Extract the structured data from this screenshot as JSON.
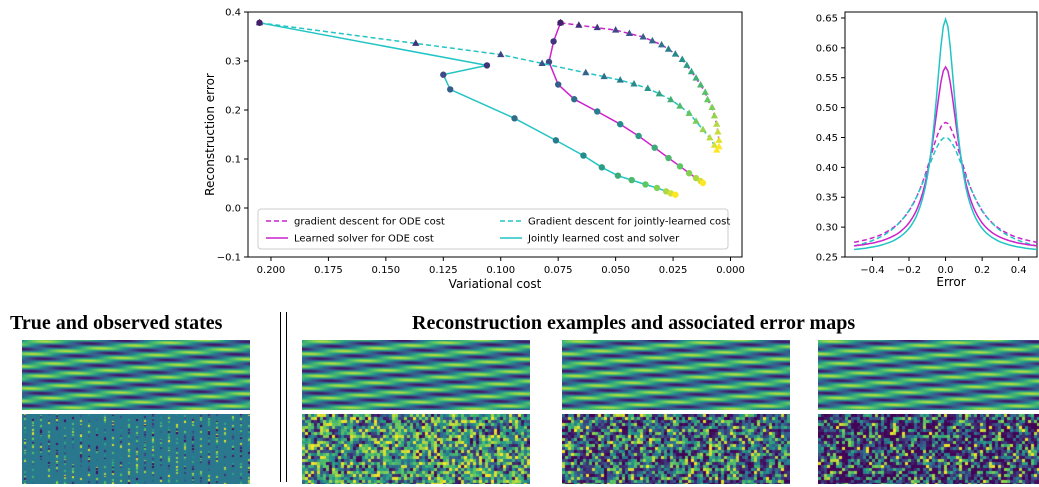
{
  "chart_data": [
    {
      "type": "line",
      "xlabel": "Variational cost",
      "ylabel": "Reconstruction error",
      "xlim": [
        0.21,
        -0.005
      ],
      "ylim": [
        -0.1,
        0.4
      ],
      "x_inverted": true,
      "xticks": [
        "0.200",
        "0.175",
        "0.150",
        "0.125",
        "0.100",
        "0.075",
        "0.050",
        "0.025",
        "0.000"
      ],
      "yticks": [
        "-0.1",
        "0.0",
        "0.1",
        "0.2",
        "0.3",
        "0.4"
      ],
      "legend_position": "bottom",
      "series": [
        {
          "name": "gradient descent for ODE cost",
          "color": "#cc22cc",
          "dash": "dashed",
          "marker": "triangle",
          "points": [
            [
              0.074,
              0.378
            ],
            [
              0.066,
              0.373
            ],
            [
              0.058,
              0.368
            ],
            [
              0.05,
              0.363
            ],
            [
              0.044,
              0.356
            ],
            [
              0.038,
              0.349
            ],
            [
              0.034,
              0.341
            ],
            [
              0.03,
              0.333
            ],
            [
              0.027,
              0.324
            ],
            [
              0.024,
              0.314
            ],
            [
              0.021,
              0.303
            ],
            [
              0.019,
              0.291
            ],
            [
              0.017,
              0.278
            ],
            [
              0.015,
              0.265
            ],
            [
              0.013,
              0.251
            ],
            [
              0.011,
              0.236
            ],
            [
              0.01,
              0.221
            ],
            [
              0.008,
              0.205
            ],
            [
              0.007,
              0.188
            ],
            [
              0.006,
              0.171
            ],
            [
              0.0055,
              0.155
            ],
            [
              0.005,
              0.138
            ],
            [
              0.005,
              0.125
            ]
          ]
        },
        {
          "name": "Learned solver for ODE cost",
          "color": "#cc22cc",
          "dash": "solid",
          "marker": "circle",
          "points": [
            [
              0.074,
              0.378
            ],
            [
              0.077,
              0.34
            ],
            [
              0.079,
              0.298
            ],
            [
              0.075,
              0.252
            ],
            [
              0.068,
              0.222
            ],
            [
              0.058,
              0.197
            ],
            [
              0.048,
              0.171
            ],
            [
              0.04,
              0.147
            ],
            [
              0.033,
              0.123
            ],
            [
              0.027,
              0.102
            ],
            [
              0.022,
              0.085
            ],
            [
              0.018,
              0.071
            ],
            [
              0.015,
              0.061
            ],
            [
              0.013,
              0.055
            ],
            [
              0.012,
              0.051
            ]
          ]
        },
        {
          "name": "Gradient descent for jointly-learned cost",
          "color": "#22c4c4",
          "dash": "dashed",
          "marker": "triangle",
          "points": [
            [
              0.205,
              0.378
            ],
            [
              0.137,
              0.336
            ],
            [
              0.1,
              0.313
            ],
            [
              0.082,
              0.295
            ],
            [
              0.063,
              0.276
            ],
            [
              0.055,
              0.268
            ],
            [
              0.048,
              0.261
            ],
            [
              0.042,
              0.253
            ],
            [
              0.036,
              0.244
            ],
            [
              0.031,
              0.233
            ],
            [
              0.026,
              0.221
            ],
            [
              0.022,
              0.208
            ],
            [
              0.018,
              0.193
            ],
            [
              0.015,
              0.177
            ],
            [
              0.012,
              0.16
            ],
            [
              0.009,
              0.143
            ],
            [
              0.007,
              0.128
            ],
            [
              0.006,
              0.118
            ]
          ]
        },
        {
          "name": "Jointly learned cost and solver",
          "color": "#22c4c4",
          "dash": "solid",
          "marker": "circle",
          "points": [
            [
              0.205,
              0.378
            ],
            [
              0.106,
              0.291
            ],
            [
              0.125,
              0.272
            ],
            [
              0.122,
              0.242
            ],
            [
              0.094,
              0.183
            ],
            [
              0.076,
              0.138
            ],
            [
              0.064,
              0.107
            ],
            [
              0.056,
              0.083
            ],
            [
              0.049,
              0.066
            ],
            [
              0.043,
              0.057
            ],
            [
              0.037,
              0.048
            ],
            [
              0.032,
              0.041
            ],
            [
              0.028,
              0.034
            ],
            [
              0.026,
              0.03
            ],
            [
              0.024,
              0.027
            ]
          ]
        }
      ],
      "legend": [
        "gradient descent for ODE cost",
        "Gradient descent for jointly-learned cost",
        "Learned solver for ODE cost",
        "Jointly learned cost and solver"
      ]
    },
    {
      "type": "line",
      "xlabel": "Error",
      "ylabel": "",
      "xlim": [
        -0.55,
        0.5
      ],
      "ylim": [
        0.25,
        0.66
      ],
      "xticks": [
        "-0.4",
        "-0.2",
        "0.0",
        "0.2",
        "0.4"
      ],
      "yticks": [
        "0.25",
        "0.30",
        "0.35",
        "0.40",
        "0.45",
        "0.50",
        "0.55",
        "0.60",
        "0.65"
      ],
      "series": [
        {
          "color": "#cc22cc",
          "dash": "dashed",
          "peak": 0.475,
          "floor": 0.26,
          "width": 0.27
        },
        {
          "color": "#22c4c4",
          "dash": "dashed",
          "peak": 0.45,
          "floor": 0.25,
          "width": 0.32
        },
        {
          "color": "#cc22cc",
          "dash": "solid",
          "peak": 0.568,
          "floor": 0.26,
          "width": 0.17
        },
        {
          "color": "#22c4c4",
          "dash": "solid",
          "peak": 0.648,
          "floor": 0.255,
          "width": 0.14
        }
      ]
    }
  ],
  "panels": {
    "left_title": "True and observed states",
    "right_title": "Reconstruction examples and associated error maps"
  },
  "colors": {
    "viridis_dark": "#440154",
    "viridis_mid": "#21918c",
    "viridis_bright": "#fde725"
  }
}
